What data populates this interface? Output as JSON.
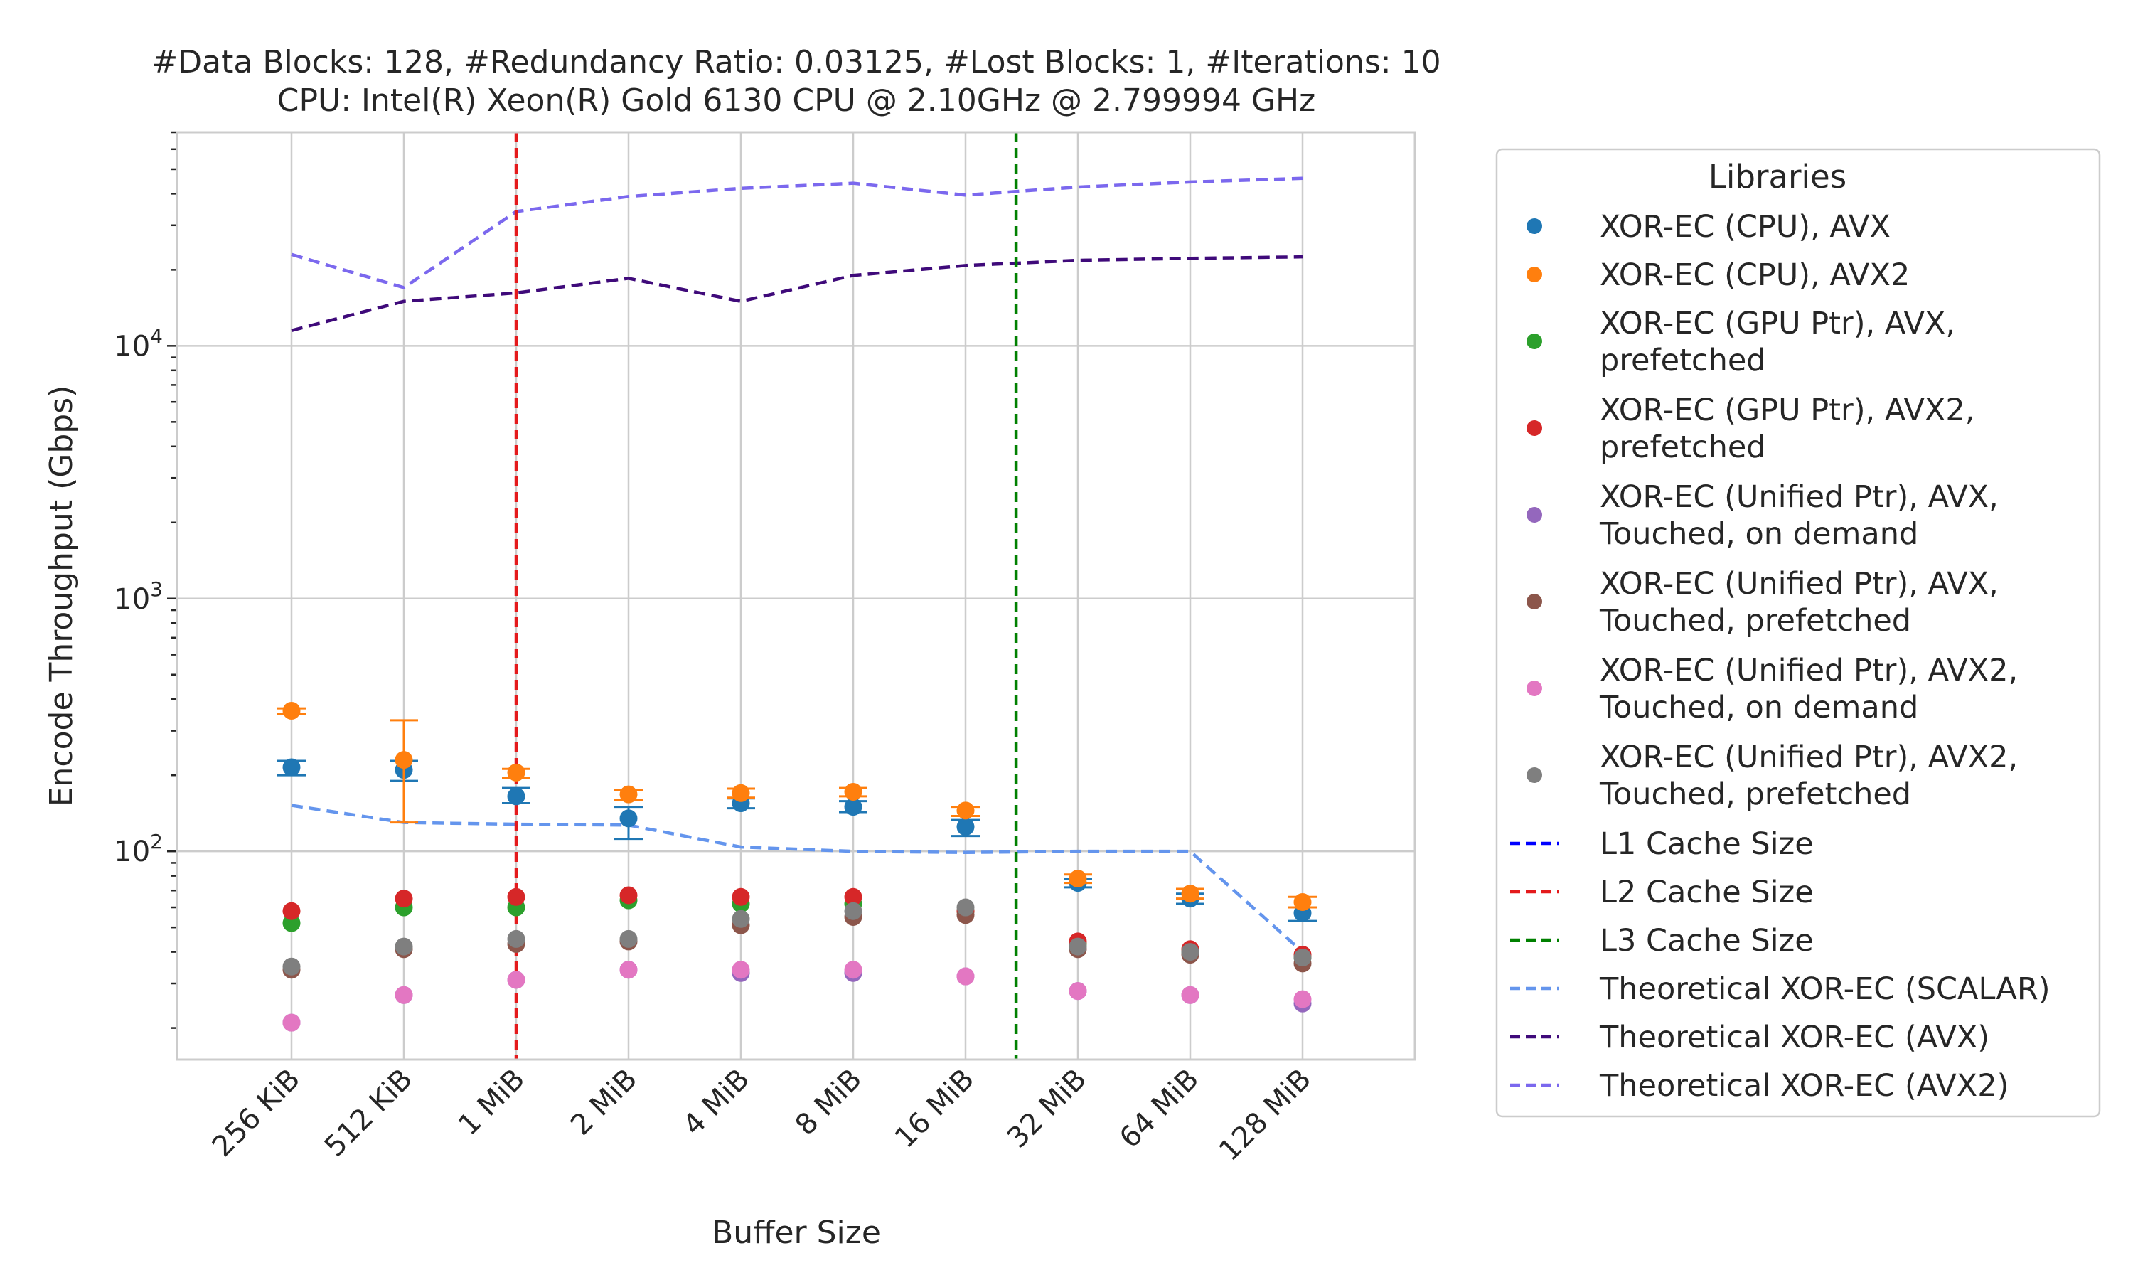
{
  "chart_data": {
    "type": "scatter",
    "title_lines": [
      "#Data Blocks: 128, #Redundancy Ratio: 0.03125, #Lost Blocks: 1, #Iterations: 10",
      "CPU: Intel(R) Xeon(R) Gold 6130 CPU @ 2.10GHz @ 2.799994 GHz"
    ],
    "xlabel": "Buffer Size",
    "ylabel": "Encode Throughput (Gbps)",
    "y_scale": "log",
    "ylim": [
      15,
      70000
    ],
    "y_major_ticks": [
      {
        "value": 100,
        "base": "10",
        "exp": "2"
      },
      {
        "value": 1000,
        "base": "10",
        "exp": "3"
      },
      {
        "value": 10000,
        "base": "10",
        "exp": "4"
      }
    ],
    "categories": [
      "256 KiB",
      "512 KiB",
      "1 MiB",
      "2 MiB",
      "4 MiB",
      "8 MiB",
      "16 MiB",
      "32 MiB",
      "64 MiB",
      "128 MiB"
    ],
    "grid": true,
    "legend": {
      "title": "Libraries",
      "placement": "outside-right"
    },
    "scatter_series": [
      {
        "name_lines": [
          "XOR-EC (CPU), AVX"
        ],
        "color": "#1f77b4",
        "values": [
          215,
          210,
          165,
          135,
          155,
          150,
          125,
          75,
          65,
          57
        ],
        "err_low": [
          200,
          190,
          155,
          112,
          148,
          143,
          115,
          72,
          62,
          53
        ],
        "err_high": [
          228,
          228,
          178,
          150,
          162,
          158,
          133,
          78,
          68,
          60
        ]
      },
      {
        "name_lines": [
          "XOR-EC (CPU), AVX2"
        ],
        "color": "#ff7f0e",
        "values": [
          360,
          230,
          205,
          168,
          170,
          172,
          145,
          78,
          68,
          63
        ],
        "err_low": [
          350,
          130,
          195,
          160,
          163,
          165,
          138,
          75,
          65,
          60
        ],
        "err_high": [
          368,
          330,
          212,
          175,
          177,
          178,
          150,
          81,
          71,
          66
        ]
      },
      {
        "name_lines": [
          "XOR-EC (GPU Ptr), AVX,",
          "prefetched"
        ],
        "color": "#2ca02c",
        "values": [
          52,
          60,
          60,
          64,
          62,
          62,
          58,
          43,
          40,
          38
        ]
      },
      {
        "name_lines": [
          "XOR-EC (GPU Ptr), AVX2,",
          "prefetched"
        ],
        "color": "#d62728",
        "values": [
          58,
          65,
          66,
          67,
          66,
          66,
          58,
          44,
          41,
          39
        ]
      },
      {
        "name_lines": [
          "XOR-EC (Unified Ptr), AVX,",
          "Touched, on demand"
        ],
        "color": "#9467bd",
        "values": [
          21,
          27,
          31,
          34,
          33,
          33,
          32,
          28,
          27,
          25
        ]
      },
      {
        "name_lines": [
          "XOR-EC (Unified Ptr), AVX,",
          "Touched, prefetched"
        ],
        "color": "#8c564b",
        "values": [
          34,
          41,
          43,
          44,
          51,
          55,
          56,
          41,
          39,
          36
        ]
      },
      {
        "name_lines": [
          "XOR-EC (Unified Ptr), AVX2,",
          "Touched, on demand"
        ],
        "color": "#e377c2",
        "values": [
          21,
          27,
          31,
          34,
          34,
          34,
          32,
          28,
          27,
          26
        ]
      },
      {
        "name_lines": [
          "XOR-EC (Unified Ptr), AVX2,",
          "Touched, prefetched"
        ],
        "color": "#7f7f7f",
        "values": [
          35,
          42,
          45,
          45,
          54,
          58,
          60,
          42,
          40,
          38
        ]
      }
    ],
    "vlines": [
      {
        "name": "L1 Cache Size",
        "color": "#0000ff",
        "visible": false
      },
      {
        "name": "L2 Cache Size",
        "color": "#e41a1c",
        "x_category_index": 2,
        "visible": true
      },
      {
        "name": "L3 Cache Size",
        "color": "#008000",
        "x_category_index": 6.45,
        "visible": true
      }
    ],
    "line_series": [
      {
        "name": "Theoretical XOR-EC (SCALAR)",
        "color": "#6495ed",
        "values": [
          152,
          130,
          128,
          127,
          104,
          100,
          99,
          100,
          100,
          40
        ]
      },
      {
        "name": "Theoretical XOR-EC (AVX)",
        "color": "#3f0a7a",
        "values": [
          11500,
          15000,
          16200,
          18500,
          15000,
          19000,
          20800,
          21800,
          22200,
          22500
        ]
      },
      {
        "name": "Theoretical XOR-EC (AVX2)",
        "color": "#7b68ee",
        "values": [
          23000,
          17000,
          34000,
          39000,
          42000,
          44000,
          39500,
          42500,
          44500,
          46000
        ]
      }
    ]
  }
}
